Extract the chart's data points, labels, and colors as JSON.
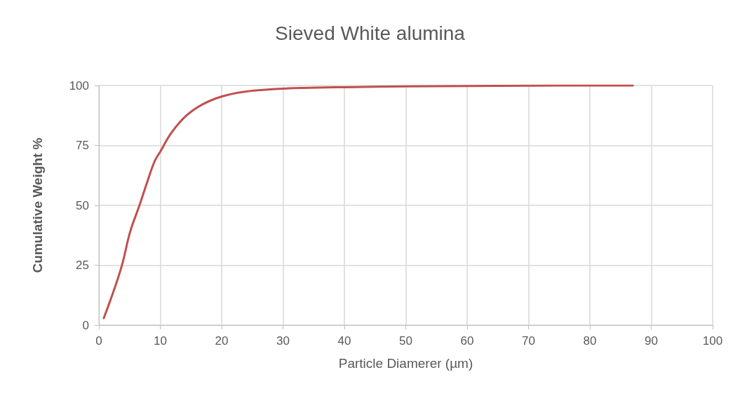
{
  "chart_data": {
    "type": "line",
    "title": "Sieved White alumina",
    "xlabel": "Particle Diamerer (µm)",
    "ylabel": "Cumulative Weight %",
    "series": [
      {
        "color": "#c0504d",
        "x": [
          0.8,
          2.6,
          3.8,
          5.1,
          6.6,
          8.0,
          9.1,
          10,
          11.8,
          14.1,
          16.8,
          20,
          23.7,
          29.4,
          33.3,
          40,
          50,
          60,
          70,
          80,
          87
        ],
        "values": [
          2.9,
          15.7,
          25.4,
          39,
          49.9,
          60.7,
          68.5,
          72.4,
          80.2,
          87.1,
          92,
          95.4,
          97.4,
          98.6,
          99,
          99.3,
          99.6,
          99.8,
          99.9,
          100,
          100
        ]
      }
    ],
    "xlim": [
      0,
      100
    ],
    "xticks": [
      0,
      10,
      20,
      30,
      40,
      50,
      60,
      70,
      80,
      90,
      100
    ],
    "ylim": [
      0,
      100
    ],
    "yticks": [
      0,
      25,
      50,
      75,
      100
    ],
    "grid": true,
    "marker": "none",
    "line_style": "solid"
  }
}
